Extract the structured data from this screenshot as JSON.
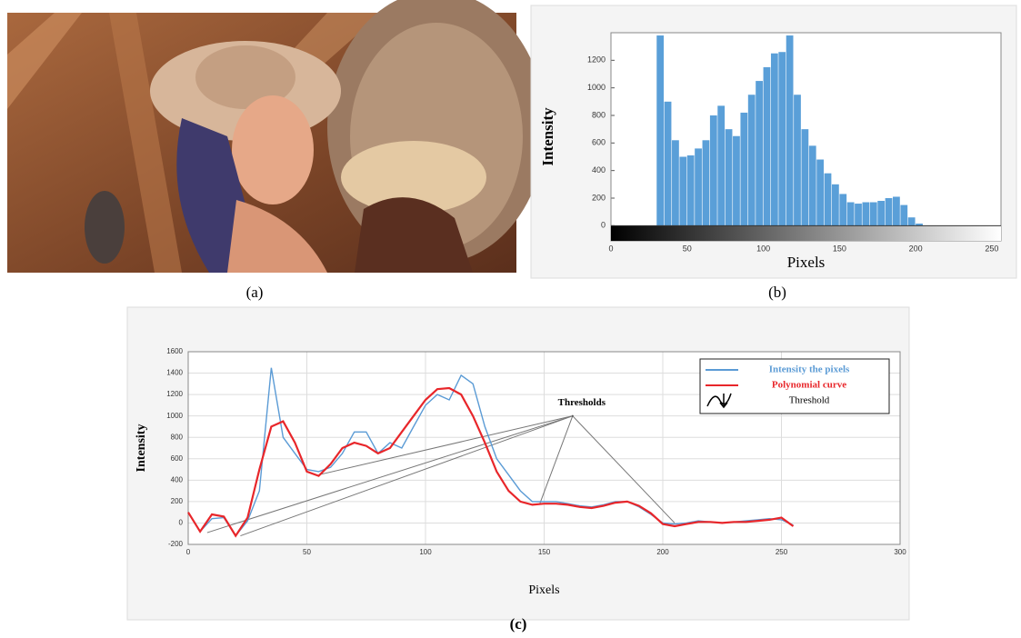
{
  "photo": {
    "caption": "(a)"
  },
  "chart_data": [
    {
      "type": "histogram",
      "caption": "(b)",
      "xlabel": "Pixels",
      "ylabel": "Intensity",
      "bins": [
        30,
        35,
        40,
        45,
        50,
        55,
        60,
        65,
        70,
        75,
        80,
        85,
        90,
        95,
        100,
        105,
        110,
        115,
        120,
        125,
        130,
        135,
        140,
        145,
        150,
        155,
        160,
        165,
        170,
        175,
        180,
        185,
        190,
        195,
        200,
        205
      ],
      "counts": [
        1380,
        900,
        620,
        500,
        510,
        560,
        620,
        800,
        870,
        700,
        650,
        820,
        950,
        1050,
        1150,
        1250,
        1260,
        1380,
        950,
        700,
        580,
        480,
        380,
        300,
        230,
        170,
        160,
        170,
        170,
        180,
        200,
        210,
        150,
        60,
        15
      ],
      "color": "#5a9fd8",
      "xlim": [
        0,
        256
      ],
      "ylim": [
        -110,
        1400
      ],
      "xticks": [
        0,
        50,
        100,
        150,
        200,
        250
      ],
      "yticks": [
        0,
        200,
        400,
        600,
        800,
        1000,
        1200
      ],
      "grid": false
    },
    {
      "type": "line",
      "caption": "(c)",
      "xlabel": "Pixels",
      "ylabel": "Intensity",
      "x": [
        0,
        5,
        10,
        15,
        20,
        25,
        30,
        35,
        40,
        45,
        50,
        55,
        60,
        65,
        70,
        75,
        80,
        85,
        90,
        95,
        100,
        105,
        110,
        115,
        120,
        125,
        130,
        135,
        140,
        145,
        150,
        155,
        160,
        165,
        170,
        175,
        180,
        185,
        190,
        195,
        200,
        205,
        210,
        215,
        220,
        225,
        230,
        235,
        240,
        245,
        250,
        255
      ],
      "series": [
        {
          "name": "Intensity the pixels",
          "color": "#5b9bd5",
          "values": [
            100,
            -80,
            40,
            50,
            -120,
            20,
            300,
            1450,
            800,
            650,
            500,
            480,
            520,
            650,
            850,
            850,
            650,
            750,
            700,
            900,
            1100,
            1200,
            1150,
            1380,
            1300,
            900,
            600,
            450,
            300,
            200,
            200,
            200,
            180,
            160,
            150,
            170,
            200,
            200,
            150,
            80,
            0,
            -10,
            0,
            20,
            10,
            0,
            10,
            20,
            30,
            40,
            30,
            -20
          ]
        },
        {
          "name": "Polynomial curve",
          "color": "#e8262a",
          "values": [
            100,
            -80,
            80,
            60,
            -120,
            50,
            500,
            900,
            950,
            750,
            480,
            440,
            550,
            700,
            750,
            720,
            650,
            700,
            850,
            1000,
            1150,
            1250,
            1260,
            1200,
            1000,
            750,
            480,
            300,
            200,
            170,
            180,
            180,
            170,
            150,
            140,
            160,
            190,
            200,
            160,
            90,
            -10,
            -30,
            -10,
            10,
            10,
            0,
            10,
            10,
            20,
            30,
            50,
            -30
          ]
        }
      ],
      "threshold_legend": "Threshold",
      "annotation": {
        "label": "Thresholds",
        "x": 162,
        "y": 1000,
        "points": [
          [
            8,
            -90
          ],
          [
            22,
            -120
          ],
          [
            55,
            450
          ],
          [
            148,
            170
          ],
          [
            205,
            0
          ]
        ]
      },
      "xlim": [
        0,
        300
      ],
      "ylim": [
        -200,
        1600
      ],
      "xticks": [
        0,
        50,
        100,
        150,
        200,
        250,
        300
      ],
      "yticks": [
        -200,
        0,
        200,
        400,
        600,
        800,
        1000,
        1200,
        1400,
        1600
      ],
      "grid": true
    }
  ]
}
